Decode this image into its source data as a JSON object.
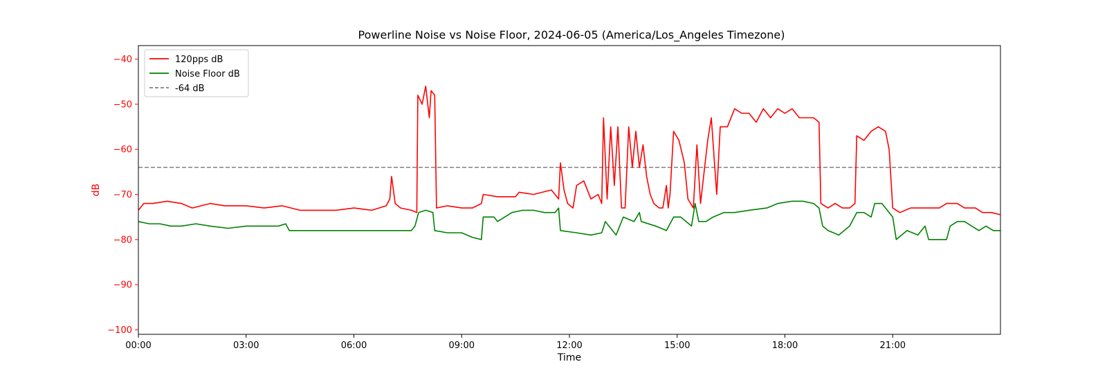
{
  "chart_data": {
    "type": "line",
    "title": "Powerline Noise vs Noise Floor, 2024-06-05 (America/Los_Angeles Timezone)",
    "xlabel": "Time",
    "ylabel": "dB",
    "xlim": [
      0,
      24
    ],
    "ylim": [
      -101,
      -37
    ],
    "x_ticks": [
      "00:00",
      "03:00",
      "06:00",
      "09:00",
      "12:00",
      "15:00",
      "18:00",
      "21:00"
    ],
    "y_ticks": [
      -40,
      -50,
      -60,
      -70,
      -80,
      -90,
      -100
    ],
    "legend_position": "top-left",
    "grid": false,
    "reference_line": {
      "label": "-64 dB",
      "y": -64,
      "color": "#808080",
      "style": "dashed"
    },
    "series": [
      {
        "name": "120pps dB",
        "color": "#ff0000",
        "points": [
          [
            0.0,
            -73.5
          ],
          [
            0.15,
            -72
          ],
          [
            0.4,
            -72
          ],
          [
            0.8,
            -71.5
          ],
          [
            1.2,
            -72
          ],
          [
            1.5,
            -73
          ],
          [
            2.0,
            -72
          ],
          [
            2.4,
            -72.5
          ],
          [
            3.0,
            -72.5
          ],
          [
            3.5,
            -73
          ],
          [
            4.0,
            -72.5
          ],
          [
            4.5,
            -73.5
          ],
          [
            5.0,
            -73.5
          ],
          [
            5.5,
            -73.5
          ],
          [
            6.0,
            -73
          ],
          [
            6.5,
            -73.5
          ],
          [
            6.9,
            -72.5
          ],
          [
            7.0,
            -71
          ],
          [
            7.05,
            -66
          ],
          [
            7.15,
            -72
          ],
          [
            7.3,
            -73
          ],
          [
            7.6,
            -73.5
          ],
          [
            7.75,
            -74
          ],
          [
            7.78,
            -48
          ],
          [
            7.9,
            -50
          ],
          [
            8.0,
            -46
          ],
          [
            8.1,
            -53
          ],
          [
            8.15,
            -47
          ],
          [
            8.25,
            -48
          ],
          [
            8.3,
            -73
          ],
          [
            8.6,
            -72.5
          ],
          [
            9.0,
            -73
          ],
          [
            9.3,
            -73
          ],
          [
            9.55,
            -72
          ],
          [
            9.6,
            -70
          ],
          [
            10.0,
            -70.5
          ],
          [
            10.5,
            -70.5
          ],
          [
            10.6,
            -69.5
          ],
          [
            11.0,
            -70
          ],
          [
            11.5,
            -69
          ],
          [
            11.7,
            -71
          ],
          [
            11.75,
            -63
          ],
          [
            11.85,
            -69
          ],
          [
            11.95,
            -72
          ],
          [
            12.1,
            -73
          ],
          [
            12.2,
            -68
          ],
          [
            12.4,
            -67
          ],
          [
            12.6,
            -71
          ],
          [
            12.8,
            -70
          ],
          [
            12.9,
            -72
          ],
          [
            12.95,
            -53
          ],
          [
            13.05,
            -71
          ],
          [
            13.15,
            -55
          ],
          [
            13.25,
            -68
          ],
          [
            13.35,
            -55
          ],
          [
            13.45,
            -73
          ],
          [
            13.55,
            -73
          ],
          [
            13.65,
            -55
          ],
          [
            13.75,
            -64
          ],
          [
            13.85,
            -56
          ],
          [
            13.95,
            -64
          ],
          [
            14.05,
            -59
          ],
          [
            14.15,
            -66
          ],
          [
            14.25,
            -70
          ],
          [
            14.35,
            -72
          ],
          [
            14.5,
            -73
          ],
          [
            14.6,
            -73
          ],
          [
            14.7,
            -68
          ],
          [
            14.75,
            -73
          ],
          [
            14.8,
            -70
          ],
          [
            14.9,
            -56
          ],
          [
            15.05,
            -58
          ],
          [
            15.2,
            -63
          ],
          [
            15.3,
            -71
          ],
          [
            15.45,
            -73
          ],
          [
            15.55,
            -59
          ],
          [
            15.65,
            -72
          ],
          [
            15.75,
            -65
          ],
          [
            15.85,
            -58
          ],
          [
            15.95,
            -53
          ],
          [
            16.1,
            -70
          ],
          [
            16.2,
            -55
          ],
          [
            16.4,
            -55
          ],
          [
            16.6,
            -51
          ],
          [
            16.8,
            -52
          ],
          [
            17.0,
            -52
          ],
          [
            17.2,
            -54
          ],
          [
            17.4,
            -51
          ],
          [
            17.6,
            -53
          ],
          [
            17.8,
            -51
          ],
          [
            18.0,
            -52
          ],
          [
            18.2,
            -51
          ],
          [
            18.4,
            -53
          ],
          [
            18.6,
            -53
          ],
          [
            18.8,
            -53
          ],
          [
            18.95,
            -54
          ],
          [
            19.0,
            -72
          ],
          [
            19.2,
            -73
          ],
          [
            19.4,
            -72
          ],
          [
            19.6,
            -73
          ],
          [
            19.8,
            -73
          ],
          [
            19.95,
            -72
          ],
          [
            20.0,
            -57
          ],
          [
            20.2,
            -58
          ],
          [
            20.4,
            -56
          ],
          [
            20.6,
            -55
          ],
          [
            20.8,
            -56
          ],
          [
            20.9,
            -60
          ],
          [
            21.0,
            -73
          ],
          [
            21.2,
            -74
          ],
          [
            21.5,
            -73
          ],
          [
            21.8,
            -73
          ],
          [
            22.0,
            -73
          ],
          [
            22.3,
            -73
          ],
          [
            22.5,
            -72
          ],
          [
            22.8,
            -72
          ],
          [
            23.0,
            -73
          ],
          [
            23.3,
            -73
          ],
          [
            23.5,
            -74
          ],
          [
            23.75,
            -74
          ],
          [
            24.0,
            -74.5
          ]
        ]
      },
      {
        "name": "Noise Floor dB",
        "color": "#008000",
        "points": [
          [
            0.0,
            -76
          ],
          [
            0.3,
            -76.5
          ],
          [
            0.6,
            -76.5
          ],
          [
            0.9,
            -77
          ],
          [
            1.2,
            -77
          ],
          [
            1.6,
            -76.5
          ],
          [
            2.0,
            -77
          ],
          [
            2.5,
            -77.5
          ],
          [
            3.0,
            -77
          ],
          [
            3.5,
            -77
          ],
          [
            3.9,
            -77
          ],
          [
            4.1,
            -76.5
          ],
          [
            4.2,
            -78
          ],
          [
            5.0,
            -78
          ],
          [
            6.0,
            -78
          ],
          [
            7.0,
            -78
          ],
          [
            7.6,
            -78
          ],
          [
            7.7,
            -77
          ],
          [
            7.8,
            -74
          ],
          [
            8.0,
            -73.5
          ],
          [
            8.2,
            -74
          ],
          [
            8.25,
            -78
          ],
          [
            8.6,
            -78.5
          ],
          [
            9.0,
            -78.5
          ],
          [
            9.3,
            -79.5
          ],
          [
            9.55,
            -80
          ],
          [
            9.6,
            -75
          ],
          [
            9.9,
            -75
          ],
          [
            10.0,
            -76
          ],
          [
            10.4,
            -74
          ],
          [
            10.7,
            -73.5
          ],
          [
            11.0,
            -73.5
          ],
          [
            11.3,
            -74
          ],
          [
            11.6,
            -74
          ],
          [
            11.7,
            -73
          ],
          [
            11.75,
            -78
          ],
          [
            12.2,
            -78.5
          ],
          [
            12.6,
            -79
          ],
          [
            12.9,
            -78.5
          ],
          [
            13.0,
            -76
          ],
          [
            13.3,
            -79
          ],
          [
            13.5,
            -75
          ],
          [
            13.8,
            -76
          ],
          [
            13.95,
            -74
          ],
          [
            14.0,
            -76
          ],
          [
            14.4,
            -77
          ],
          [
            14.7,
            -78
          ],
          [
            14.9,
            -75
          ],
          [
            15.1,
            -75
          ],
          [
            15.4,
            -77
          ],
          [
            15.5,
            -72
          ],
          [
            15.6,
            -76
          ],
          [
            15.8,
            -76
          ],
          [
            16.0,
            -75
          ],
          [
            16.3,
            -74
          ],
          [
            16.6,
            -74
          ],
          [
            17.0,
            -73.5
          ],
          [
            17.5,
            -73
          ],
          [
            17.8,
            -72
          ],
          [
            18.2,
            -71.5
          ],
          [
            18.5,
            -71.5
          ],
          [
            18.8,
            -72
          ],
          [
            18.95,
            -73
          ],
          [
            19.05,
            -77
          ],
          [
            19.2,
            -78
          ],
          [
            19.5,
            -79
          ],
          [
            19.8,
            -77
          ],
          [
            20.0,
            -74
          ],
          [
            20.2,
            -74
          ],
          [
            20.4,
            -75
          ],
          [
            20.5,
            -72
          ],
          [
            20.7,
            -72
          ],
          [
            20.9,
            -74
          ],
          [
            21.0,
            -75
          ],
          [
            21.1,
            -80
          ],
          [
            21.4,
            -78
          ],
          [
            21.7,
            -79
          ],
          [
            21.9,
            -77
          ],
          [
            22.0,
            -80
          ],
          [
            22.3,
            -80
          ],
          [
            22.5,
            -80
          ],
          [
            22.6,
            -77
          ],
          [
            22.8,
            -76
          ],
          [
            23.0,
            -76
          ],
          [
            23.2,
            -77
          ],
          [
            23.4,
            -78
          ],
          [
            23.6,
            -77
          ],
          [
            23.8,
            -78
          ],
          [
            24.0,
            -78
          ]
        ]
      }
    ]
  }
}
